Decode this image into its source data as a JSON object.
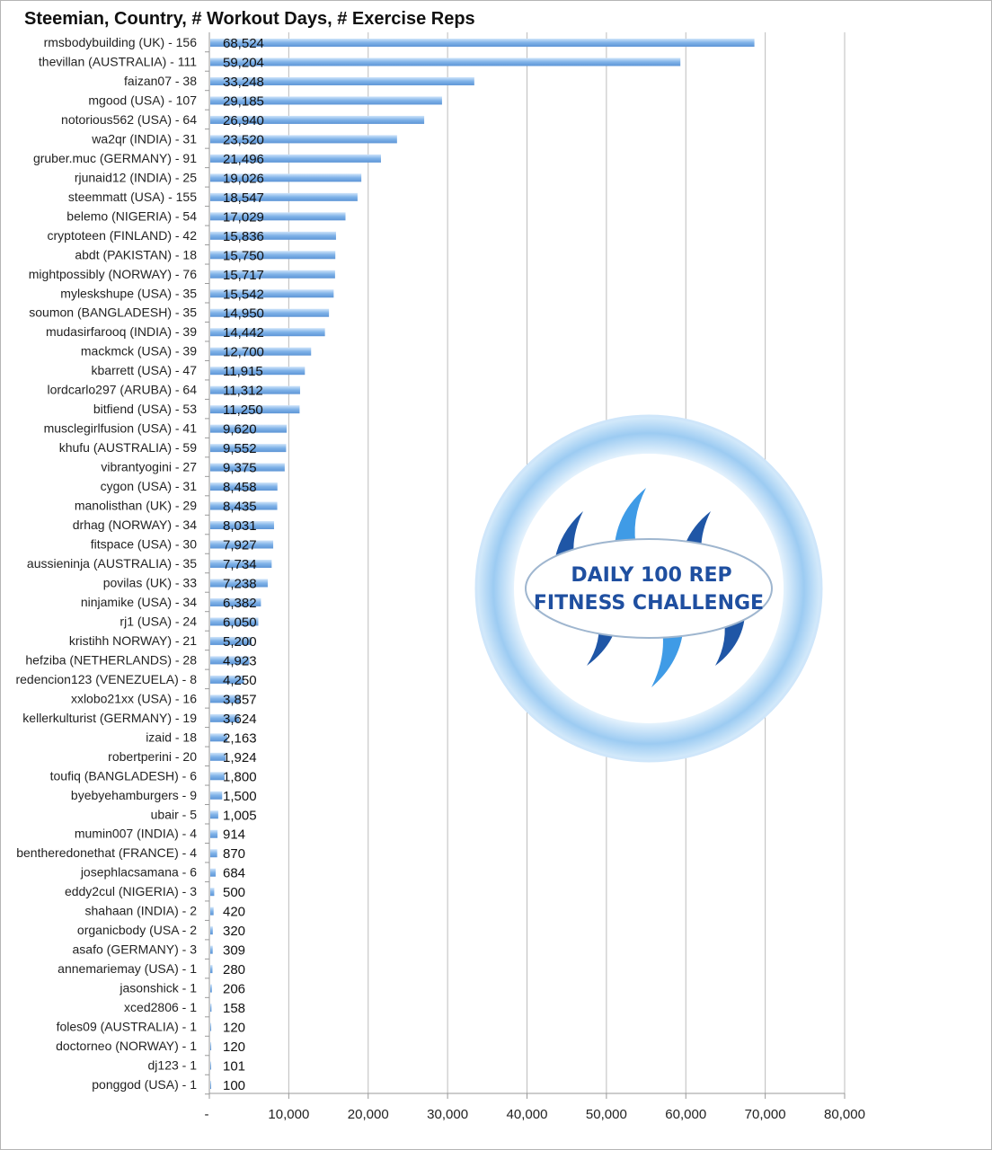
{
  "chart_data": {
    "type": "bar",
    "orientation": "horizontal",
    "title": "Steemian, Country, # Workout Days, # Exercise Reps",
    "xlim": [
      0,
      80000
    ],
    "xticks": [
      "-",
      "10,000",
      "20,000",
      "30,000",
      "40,000",
      "50,000",
      "60,000",
      "70,000",
      "80,000"
    ],
    "grid": true,
    "bar_color": "#7fb2e8",
    "categories": [
      "rmsbodybuilding (UK) - 156",
      "thevillan (AUSTRALIA) - 111",
      "faizan07 - 38",
      "mgood (USA) - 107",
      "notorious562 (USA) - 64",
      "wa2qr (INDIA) - 31",
      "gruber.muc (GERMANY) - 91",
      "rjunaid12 (INDIA) - 25",
      "steemmatt (USA) - 155",
      "belemo (NIGERIA) - 54",
      "cryptoteen (FINLAND) - 42",
      "abdt (PAKISTAN) - 18",
      "mightpossibly (NORWAY) - 76",
      "myleskshupe (USA) - 35",
      "soumon (BANGLADESH) - 35",
      "mudasirfarooq (INDIA) - 39",
      "mackmck (USA) - 39",
      "kbarrett (USA) - 47",
      "lordcarlo297 (ARUBA) - 64",
      "bitfiend (USA) - 53",
      "musclegirlfusion (USA) - 41",
      "khufu (AUSTRALIA) - 59",
      "vibrantyogini - 27",
      "cygon (USA) - 31",
      "manolisthan (UK) - 29",
      "drhag (NORWAY) - 34",
      "fitspace (USA) - 30",
      "aussieninja (AUSTRALIA) - 35",
      "povilas (UK) - 33",
      "ninjamike (USA) - 34",
      "rj1 (USA) - 24",
      "kristihh NORWAY) - 21",
      "hefziba (NETHERLANDS) - 28",
      "redencion123 (VENEZUELA) - 8",
      "xxlobo21xx (USA) - 16",
      "kellerkulturist (GERMANY) - 19",
      "izaid - 18",
      "robertperini - 20",
      "toufiq (BANGLADESH) - 6",
      "byebyehamburgers - 9",
      "ubair - 5",
      "mumin007 (INDIA) - 4",
      "bentheredonethat (FRANCE) - 4",
      "josephlacsamana - 6",
      "eddy2cul (NIGERIA) - 3",
      "shahaan (INDIA) - 2",
      "organicbody (USA - 2",
      "asafo (GERMANY) - 3",
      "annemariemay (USA) - 1",
      "jasonshick  - 1",
      "xced2806 - 1",
      "foles09 (AUSTRALIA) - 1",
      "doctorneo (NORWAY) - 1",
      "dj123 - 1",
      "ponggod (USA) - 1"
    ],
    "values": [
      68524,
      59204,
      33248,
      29185,
      26940,
      23520,
      21496,
      19026,
      18547,
      17029,
      15836,
      15750,
      15717,
      15542,
      14950,
      14442,
      12700,
      11915,
      11312,
      11250,
      9620,
      9552,
      9375,
      8458,
      8435,
      8031,
      7927,
      7734,
      7238,
      6382,
      6050,
      5200,
      4923,
      4250,
      3857,
      3624,
      2163,
      1924,
      1800,
      1500,
      1005,
      914,
      870,
      684,
      500,
      420,
      320,
      309,
      280,
      206,
      158,
      120,
      120,
      101,
      100
    ],
    "value_labels": [
      "68,524",
      "59,204",
      "33,248",
      "29,185",
      "26,940",
      "23,520",
      "21,496",
      "19,026",
      "18,547",
      "17,029",
      "15,836",
      "15,750",
      "15,717",
      "15,542",
      "14,950",
      "14,442",
      "12,700",
      "11,915",
      "11,312",
      "11,250",
      "9,620",
      "9,552",
      "9,375",
      "8,458",
      "8,435",
      "8,031",
      "7,927",
      "7,734",
      "7,238",
      "6,382",
      "6,050",
      "5,200",
      "4,923",
      "4,250",
      "3,857",
      "3,624",
      "2,163",
      "1,924",
      "1,800",
      "1,500",
      "1,005",
      "914",
      "870",
      "684",
      "500",
      "420",
      "320",
      "309",
      "280",
      "206",
      "158",
      "120",
      "120",
      "101",
      "100"
    ]
  },
  "logo": {
    "line1": "DAILY 100 REP",
    "line2": "FITNESS CHALLENGE",
    "colors": {
      "ring": "#a9d3f5",
      "dark": "#1f56a6",
      "light": "#3f9be6"
    }
  }
}
